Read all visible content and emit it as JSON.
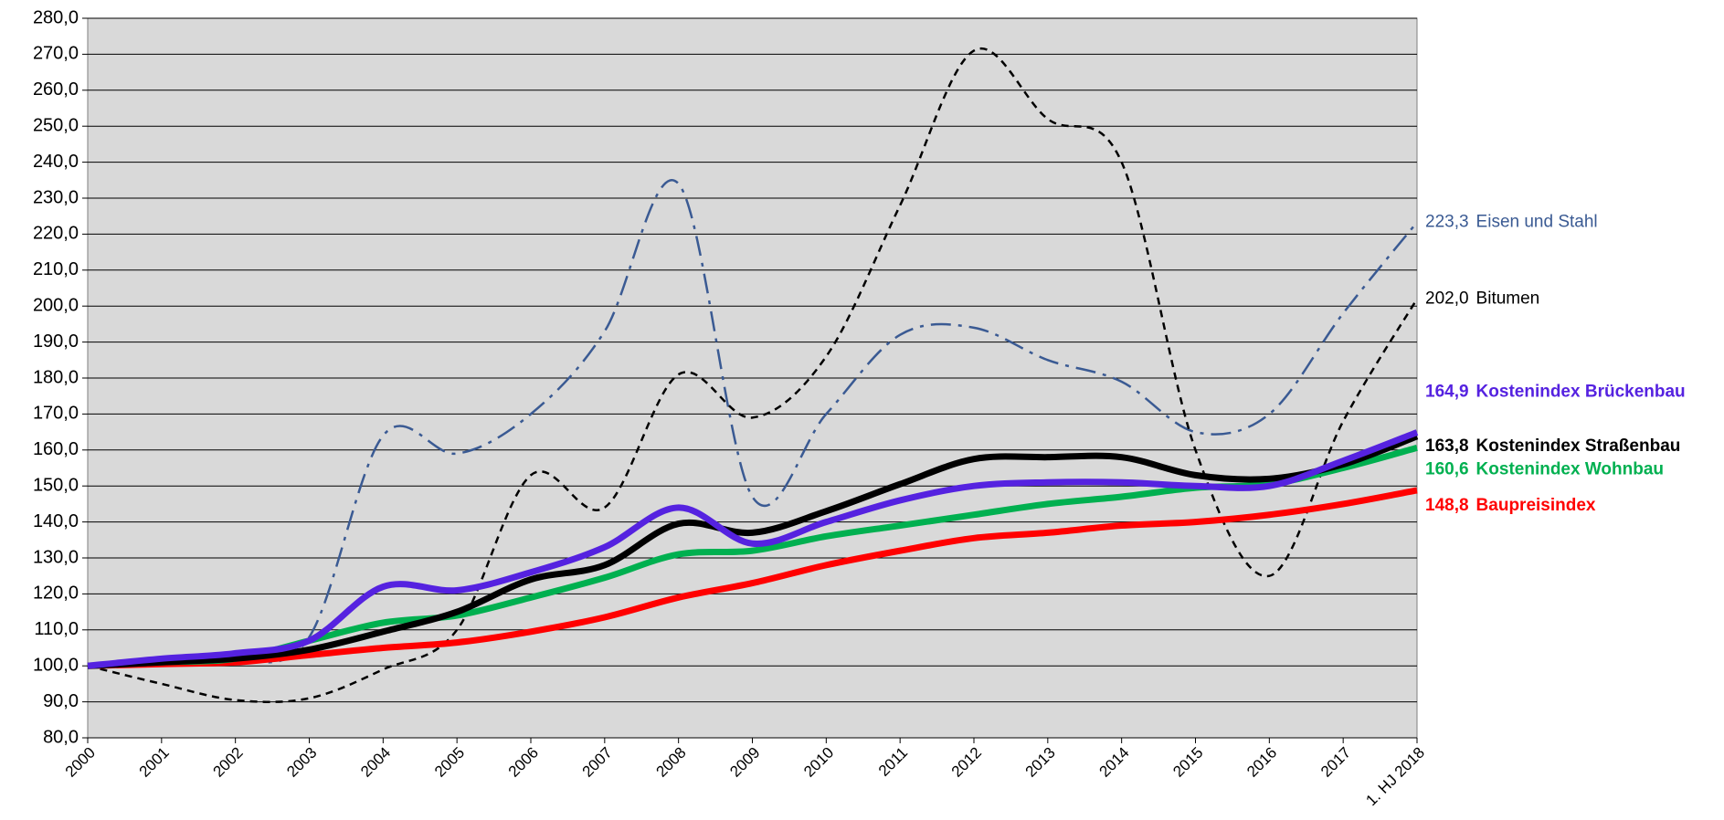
{
  "chart_data": {
    "type": "line",
    "categories": [
      "2000",
      "2001",
      "2002",
      "2003",
      "2004",
      "2005",
      "2006",
      "2007",
      "2008",
      "2009",
      "2010",
      "2011",
      "2012",
      "2013",
      "2014",
      "2015",
      "2016",
      "2017",
      "1. HJ 2018"
    ],
    "ylim": [
      80,
      280
    ],
    "yticks": [
      {
        "value": 80,
        "label": "80,0"
      },
      {
        "value": 90,
        "label": "90,0"
      },
      {
        "value": 100,
        "label": "100,0"
      },
      {
        "value": 110,
        "label": "110,0"
      },
      {
        "value": 120,
        "label": "120,0"
      },
      {
        "value": 130,
        "label": "130,0"
      },
      {
        "value": 140,
        "label": "140,0"
      },
      {
        "value": 150,
        "label": "150,0"
      },
      {
        "value": 160,
        "label": "160,0"
      },
      {
        "value": 170,
        "label": "170,0"
      },
      {
        "value": 180,
        "label": "180,0"
      },
      {
        "value": 190,
        "label": "190,0"
      },
      {
        "value": 200,
        "label": "200,0"
      },
      {
        "value": 210,
        "label": "210,0"
      },
      {
        "value": 220,
        "label": "220,0"
      },
      {
        "value": 230,
        "label": "230,0"
      },
      {
        "value": 240,
        "label": "240,0"
      },
      {
        "value": 250,
        "label": "250,0"
      },
      {
        "value": 260,
        "label": "260,0"
      },
      {
        "value": 270,
        "label": "270,0"
      },
      {
        "value": 280,
        "label": "280,0"
      }
    ],
    "grid": true,
    "series": [
      {
        "name": "Eisen und Stahl",
        "color": "#3a5a93",
        "style": "dash-dot",
        "values": [
          100,
          100.5,
          101,
          108,
          164,
          159,
          170,
          193,
          234,
          147,
          170,
          192,
          194,
          185,
          179,
          165,
          170,
          198,
          223.3
        ],
        "value_labels": [
          null,
          null,
          null,
          null,
          null,
          null,
          null,
          null,
          null,
          null,
          null,
          null,
          null,
          null,
          null,
          null,
          null,
          null,
          "223,3"
        ]
      },
      {
        "name": "Bitumen",
        "color": "#000000",
        "style": "dashed",
        "values": [
          100,
          95,
          90.5,
          91,
          99,
          110,
          153,
          144,
          181,
          169,
          186,
          228,
          271,
          252,
          240,
          160,
          125,
          168,
          202.0
        ],
        "value_labels": [
          null,
          null,
          null,
          null,
          null,
          null,
          null,
          null,
          null,
          null,
          null,
          null,
          null,
          null,
          null,
          null,
          null,
          null,
          "202,0"
        ]
      },
      {
        "name": "Kostenindex Brückenbau",
        "color": "#5522e0",
        "style": "solid",
        "values": [
          100,
          102,
          103.5,
          107,
          122,
          121,
          126,
          133,
          144,
          134,
          140,
          146,
          150,
          151,
          151,
          150,
          150,
          157,
          164.9
        ],
        "value_labels": [
          null,
          null,
          null,
          null,
          null,
          null,
          null,
          null,
          null,
          null,
          null,
          null,
          null,
          null,
          null,
          null,
          null,
          null,
          "164,9"
        ]
      },
      {
        "name": "Kostenindex Straßenbau",
        "color": "#000000",
        "style": "solid",
        "values": [
          100,
          101,
          102,
          104.5,
          109.5,
          115,
          124,
          128,
          139.5,
          137,
          143,
          150.5,
          157.5,
          158,
          158,
          153,
          152,
          156,
          163.8
        ],
        "value_labels": [
          null,
          null,
          null,
          null,
          null,
          null,
          null,
          null,
          null,
          null,
          null,
          null,
          null,
          null,
          null,
          null,
          null,
          null,
          "163,8"
        ]
      },
      {
        "name": "Kostenindex Wohnbau",
        "color": "#00b050",
        "style": "solid",
        "values": [
          100,
          101,
          102,
          107,
          112,
          114,
          119,
          124.5,
          131,
          132,
          136,
          139,
          142,
          145,
          147,
          149.5,
          150.5,
          155,
          160.6
        ],
        "value_labels": [
          null,
          null,
          null,
          null,
          null,
          null,
          null,
          null,
          null,
          null,
          null,
          null,
          null,
          null,
          null,
          null,
          null,
          null,
          "160,6"
        ]
      },
      {
        "name": "Baupreisindex",
        "color": "#ff0000",
        "style": "solid",
        "values": [
          100,
          100.5,
          101,
          103,
          105,
          106.5,
          109.5,
          113.5,
          119,
          123,
          128,
          132,
          135.5,
          137,
          139,
          140,
          142,
          145,
          148.8
        ],
        "value_labels": [
          null,
          null,
          null,
          null,
          null,
          null,
          null,
          null,
          null,
          null,
          null,
          null,
          null,
          null,
          null,
          null,
          null,
          null,
          "148,8"
        ]
      }
    ]
  }
}
